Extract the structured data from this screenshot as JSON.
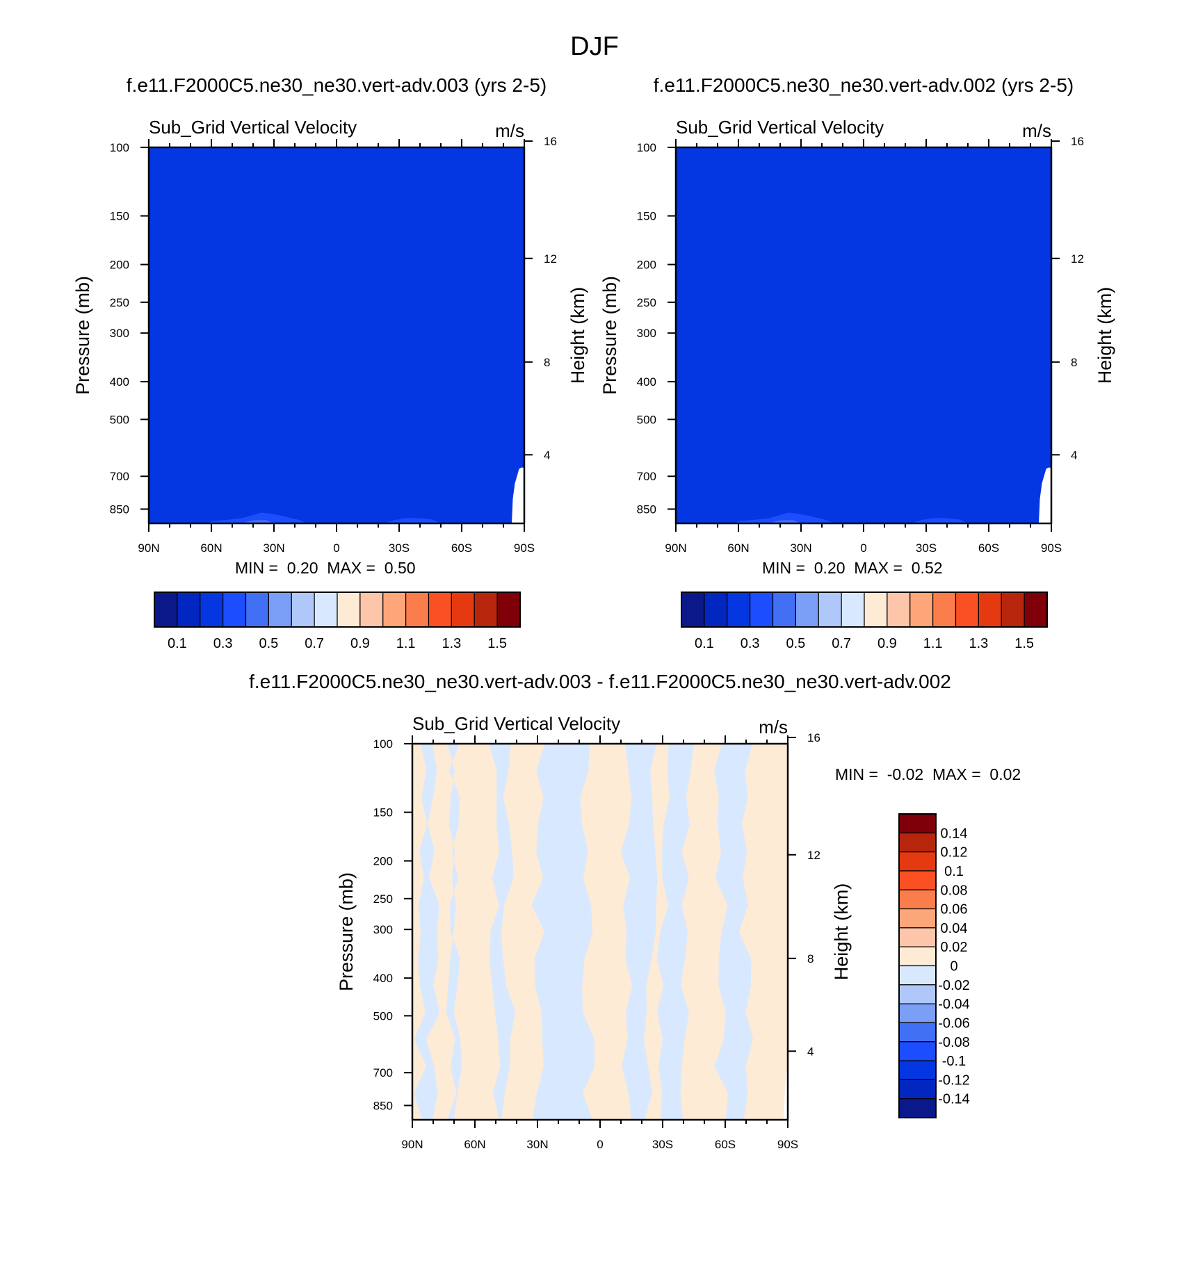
{
  "figure": {
    "title": "DJF"
  },
  "chart_data": [
    {
      "type": "heatmap",
      "title": "f.e11.F2000C5.ne30_ne30.vert-adv.003 (yrs 2-5)",
      "subtitle": "Sub_Grid Vertical Velocity",
      "units": "m/s",
      "ylabel": "Pressure (mb)",
      "y2label": "Height (km)",
      "x_ticks": [
        "90N",
        "60N",
        "30N",
        "0",
        "30S",
        "60S",
        "90S"
      ],
      "y_ticks": [
        "100",
        "150",
        "200",
        "250",
        "300",
        "400",
        "500",
        "700",
        "850"
      ],
      "y2_ticks": [
        "16",
        "12",
        "8",
        "4"
      ],
      "ylim": [
        100,
        925
      ],
      "xlim": [
        90,
        -90
      ],
      "y_scale": "log",
      "min_label": "MIN =",
      "min_value": "0.20",
      "max_label": "MAX =",
      "max_value": "0.50",
      "fill_color": "#0437e2",
      "colorbar": {
        "orientation": "horizontal",
        "colors": [
          "#0a1889",
          "#0227c1",
          "#0437e2",
          "#1c4dff",
          "#4270f5",
          "#7b9ef7",
          "#b0c7fa",
          "#d8e9ff",
          "#fdebd6",
          "#fdc6ab",
          "#fca679",
          "#fb7d4b",
          "#fa5024",
          "#e43911",
          "#b8250d",
          "#7f0008"
        ],
        "labels": [
          "0.1",
          "0.3",
          "0.5",
          "0.7",
          "0.9",
          "1.1",
          "1.3",
          "1.5"
        ]
      }
    },
    {
      "type": "heatmap",
      "title": "f.e11.F2000C5.ne30_ne30.vert-adv.002 (yrs 2-5)",
      "subtitle": "Sub_Grid Vertical Velocity",
      "units": "m/s",
      "ylabel": "Pressure (mb)",
      "y2label": "Height (km)",
      "x_ticks": [
        "90N",
        "60N",
        "30N",
        "0",
        "30S",
        "60S",
        "90S"
      ],
      "y_ticks": [
        "100",
        "150",
        "200",
        "250",
        "300",
        "400",
        "500",
        "700",
        "850"
      ],
      "y2_ticks": [
        "16",
        "12",
        "8",
        "4"
      ],
      "ylim": [
        100,
        925
      ],
      "xlim": [
        90,
        -90
      ],
      "y_scale": "log",
      "min_label": "MIN =",
      "min_value": "0.20",
      "max_label": "MAX =",
      "max_value": "0.52",
      "fill_color": "#0437e2",
      "colorbar": {
        "orientation": "horizontal",
        "colors": [
          "#0a1889",
          "#0227c1",
          "#0437e2",
          "#1c4dff",
          "#4270f5",
          "#7b9ef7",
          "#b0c7fa",
          "#d8e9ff",
          "#fdebd6",
          "#fdc6ab",
          "#fca679",
          "#fb7d4b",
          "#fa5024",
          "#e43911",
          "#b8250d",
          "#7f0008"
        ],
        "labels": [
          "0.1",
          "0.3",
          "0.5",
          "0.7",
          "0.9",
          "1.1",
          "1.3",
          "1.5"
        ]
      }
    },
    {
      "type": "heatmap",
      "title": "f.e11.F2000C5.ne30_ne30.vert-adv.003 - f.e11.F2000C5.ne30_ne30.vert-adv.002",
      "subtitle": "Sub_Grid Vertical Velocity",
      "units": "m/s",
      "ylabel": "Pressure (mb)",
      "y2label": "Height (km)",
      "x_ticks": [
        "90N",
        "60N",
        "30N",
        "0",
        "30S",
        "60S",
        "90S"
      ],
      "y_ticks": [
        "100",
        "150",
        "200",
        "250",
        "300",
        "400",
        "500",
        "700",
        "850"
      ],
      "y2_ticks": [
        "16",
        "12",
        "8",
        "4"
      ],
      "ylim": [
        100,
        925
      ],
      "xlim": [
        90,
        -90
      ],
      "y_scale": "log",
      "min_label": "MIN =",
      "min_value": "-0.02",
      "max_label": "MAX =",
      "max_value": "0.02",
      "positive_color": "#fdebd6",
      "negative_color": "#d8e9ff",
      "colorbar": {
        "orientation": "vertical",
        "colors": [
          "#7f0008",
          "#b8250d",
          "#e43911",
          "#fa5024",
          "#fb7d4b",
          "#fca679",
          "#fdc6ab",
          "#fdebd6",
          "#d8e9ff",
          "#b0c7fa",
          "#7b9ef7",
          "#4270f5",
          "#1c4dff",
          "#0437e2",
          "#0227c1",
          "#0a1889"
        ],
        "labels": [
          "0.14",
          "0.12",
          "0.1",
          "0.08",
          "0.06",
          "0.04",
          "0.02",
          "0",
          "-0.02",
          "-0.04",
          "-0.06",
          "-0.08",
          "-0.1",
          "-0.12",
          "-0.14"
        ]
      }
    }
  ]
}
